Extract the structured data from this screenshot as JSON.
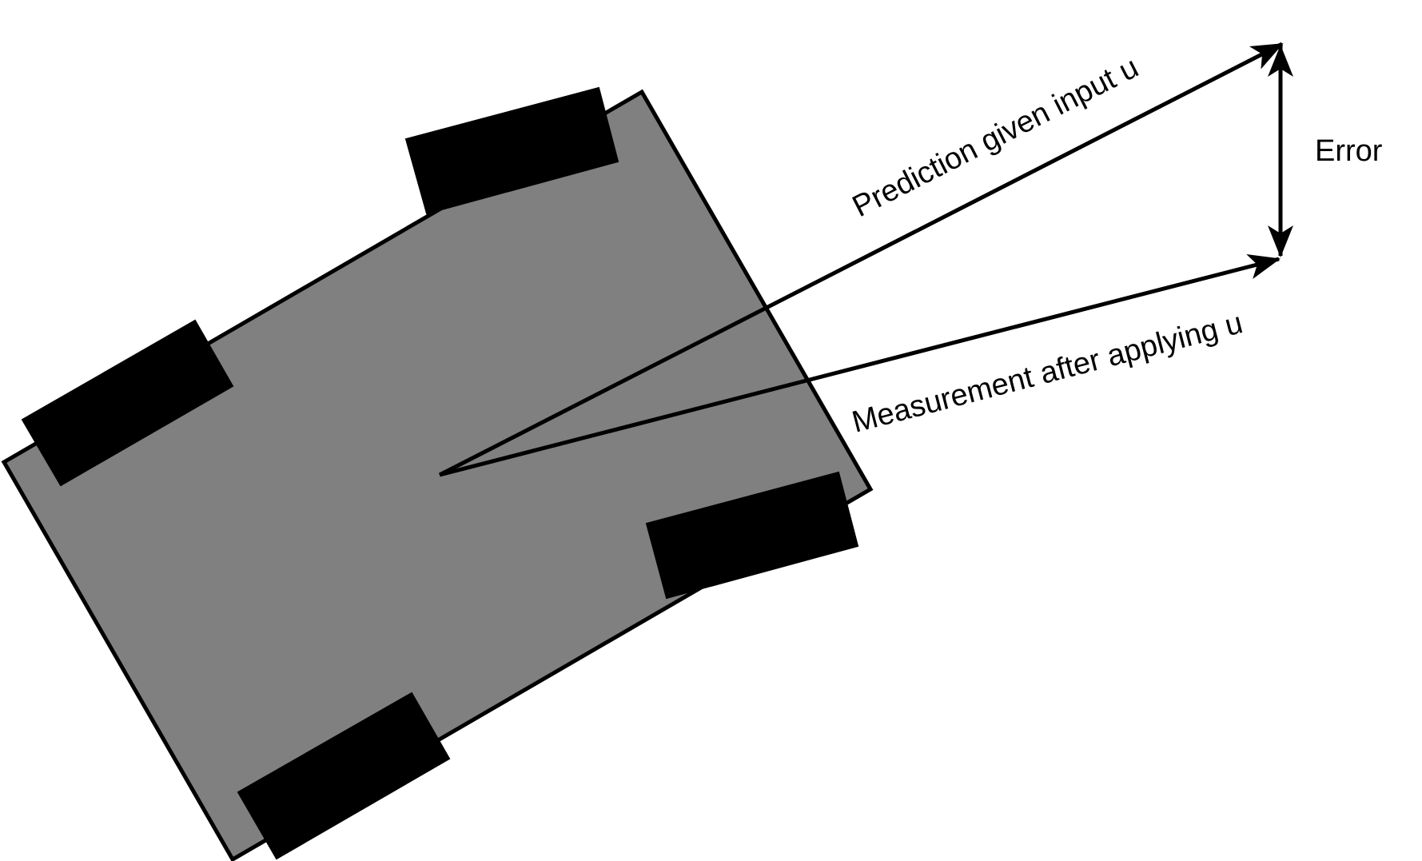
{
  "labels": {
    "prediction": "Prediction given input u",
    "measurement": "Measurement after applying u",
    "error": "Error"
  },
  "colors": {
    "chassis_fill": "#808080",
    "wheel_fill": "#000000",
    "stroke": "#000000",
    "background": "#ffffff"
  }
}
